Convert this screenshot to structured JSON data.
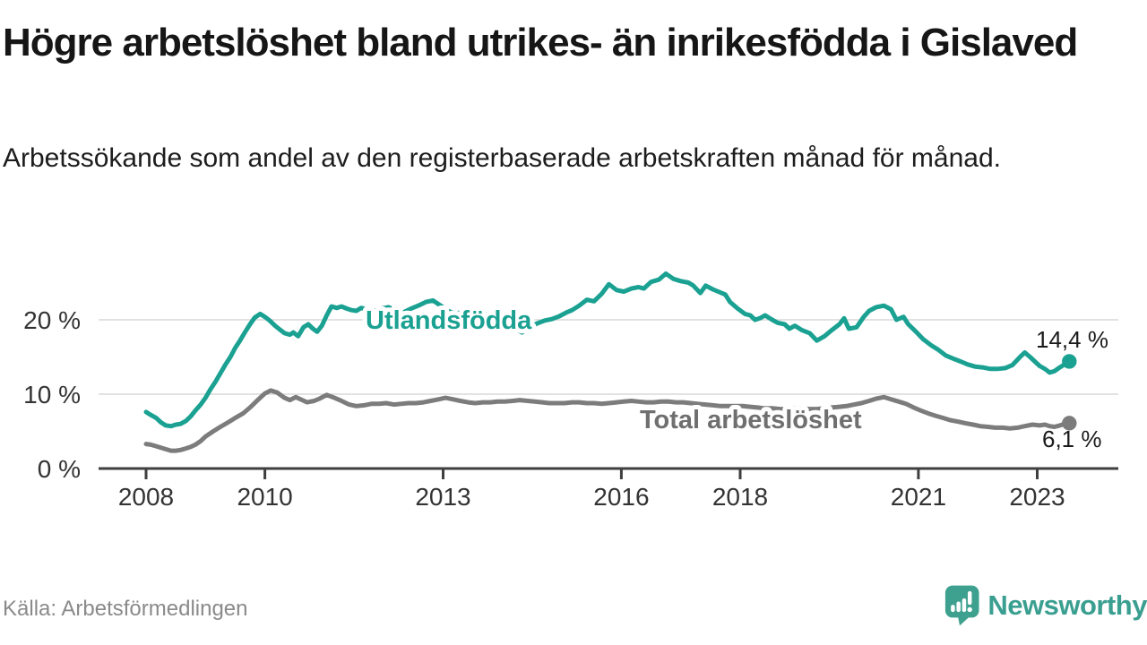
{
  "header": {
    "title": "Högre arbetslöshet bland utrikes- än inrikesfödda i Gislaved",
    "subtitle": "Arbetssökande som andel av den registerbaserade arbetskraften månad för månad."
  },
  "footer": {
    "source": "Källa: Arbetsförmedlingen",
    "brand": "Newsworthy"
  },
  "colors": {
    "teal": "#1aa192",
    "gray": "#7c7c7c",
    "gray_label": "#6f6f6f",
    "grid": "#d9d9d9",
    "axis": "#3f3f3f",
    "value_label": "#1b1b1b",
    "brand_teal": "#3ea08e"
  },
  "chart_data": {
    "type": "line",
    "title": "Högre arbetslöshet bland utrikes- än inrikesfödda i Gislaved",
    "subtitle": "Arbetssökande som andel av den registerbaserade arbetskraften månad för månad.",
    "unit": "%",
    "grid": true,
    "x_axis": {
      "ticks": [
        2008,
        2010,
        2013,
        2016,
        2018,
        2021,
        2023
      ],
      "range": [
        2007.9,
        2024.4
      ]
    },
    "y_axis": {
      "ticks": [
        0,
        10,
        20
      ],
      "tick_labels": [
        "0 %",
        "10 %",
        "20 %"
      ],
      "range": [
        0,
        27
      ]
    },
    "series": [
      {
        "name": "Total arbetslöshet",
        "slug": "total-arbetsloshet",
        "color": "#7c7c7c",
        "label_color": "#6f6f6f",
        "end_label": "6,1 %",
        "end_value": 6.1,
        "points": [
          [
            2008.0,
            3.3
          ],
          [
            2008.08,
            3.2
          ],
          [
            2008.17,
            3.0
          ],
          [
            2008.25,
            2.8
          ],
          [
            2008.33,
            2.6
          ],
          [
            2008.42,
            2.4
          ],
          [
            2008.5,
            2.4
          ],
          [
            2008.58,
            2.5
          ],
          [
            2008.67,
            2.7
          ],
          [
            2008.75,
            2.9
          ],
          [
            2008.83,
            3.2
          ],
          [
            2008.92,
            3.7
          ],
          [
            2009.0,
            4.3
          ],
          [
            2009.13,
            5.0
          ],
          [
            2009.25,
            5.6
          ],
          [
            2009.38,
            6.2
          ],
          [
            2009.5,
            6.8
          ],
          [
            2009.63,
            7.4
          ],
          [
            2009.75,
            8.2
          ],
          [
            2009.88,
            9.2
          ],
          [
            2010.0,
            10.1
          ],
          [
            2010.1,
            10.5
          ],
          [
            2010.21,
            10.2
          ],
          [
            2010.33,
            9.5
          ],
          [
            2010.42,
            9.2
          ],
          [
            2010.52,
            9.6
          ],
          [
            2010.63,
            9.2
          ],
          [
            2010.71,
            8.9
          ],
          [
            2010.83,
            9.1
          ],
          [
            2010.92,
            9.4
          ],
          [
            2011.04,
            9.9
          ],
          [
            2011.17,
            9.5
          ],
          [
            2011.29,
            9.1
          ],
          [
            2011.42,
            8.6
          ],
          [
            2011.54,
            8.4
          ],
          [
            2011.67,
            8.5
          ],
          [
            2011.79,
            8.7
          ],
          [
            2011.92,
            8.7
          ],
          [
            2012.04,
            8.8
          ],
          [
            2012.17,
            8.6
          ],
          [
            2012.29,
            8.7
          ],
          [
            2012.42,
            8.8
          ],
          [
            2012.54,
            8.8
          ],
          [
            2012.67,
            8.9
          ],
          [
            2012.79,
            9.1
          ],
          [
            2012.92,
            9.3
          ],
          [
            2013.04,
            9.5
          ],
          [
            2013.17,
            9.3
          ],
          [
            2013.29,
            9.1
          ],
          [
            2013.42,
            8.9
          ],
          [
            2013.54,
            8.8
          ],
          [
            2013.67,
            8.9
          ],
          [
            2013.79,
            8.9
          ],
          [
            2013.92,
            9.0
          ],
          [
            2014.04,
            9.0
          ],
          [
            2014.17,
            9.1
          ],
          [
            2014.29,
            9.2
          ],
          [
            2014.42,
            9.1
          ],
          [
            2014.54,
            9.0
          ],
          [
            2014.67,
            8.9
          ],
          [
            2014.79,
            8.8
          ],
          [
            2014.92,
            8.8
          ],
          [
            2015.04,
            8.8
          ],
          [
            2015.17,
            8.9
          ],
          [
            2015.29,
            8.9
          ],
          [
            2015.42,
            8.8
          ],
          [
            2015.54,
            8.8
          ],
          [
            2015.67,
            8.7
          ],
          [
            2015.79,
            8.8
          ],
          [
            2015.92,
            8.9
          ],
          [
            2016.04,
            9.0
          ],
          [
            2016.17,
            9.1
          ],
          [
            2016.29,
            9.0
          ],
          [
            2016.42,
            8.9
          ],
          [
            2016.54,
            8.9
          ],
          [
            2016.67,
            9.0
          ],
          [
            2016.79,
            9.0
          ],
          [
            2016.92,
            8.9
          ],
          [
            2017.04,
            8.9
          ],
          [
            2017.17,
            8.8
          ],
          [
            2017.29,
            8.7
          ],
          [
            2017.42,
            8.6
          ],
          [
            2017.54,
            8.5
          ],
          [
            2017.67,
            8.4
          ],
          [
            2017.79,
            8.4
          ],
          [
            2017.92,
            8.4
          ],
          [
            2018.04,
            8.4
          ],
          [
            2018.17,
            8.3
          ],
          [
            2018.29,
            8.2
          ],
          [
            2018.42,
            8.1
          ],
          [
            2018.54,
            8.1
          ],
          [
            2018.67,
            8.0
          ],
          [
            2018.79,
            8.0
          ],
          [
            2018.92,
            8.1
          ],
          [
            2019.04,
            8.1
          ],
          [
            2019.17,
            8.0
          ],
          [
            2019.29,
            8.0
          ],
          [
            2019.42,
            8.1
          ],
          [
            2019.54,
            8.2
          ],
          [
            2019.67,
            8.3
          ],
          [
            2019.79,
            8.4
          ],
          [
            2019.92,
            8.6
          ],
          [
            2020.04,
            8.8
          ],
          [
            2020.17,
            9.1
          ],
          [
            2020.29,
            9.4
          ],
          [
            2020.42,
            9.6
          ],
          [
            2020.54,
            9.3
          ],
          [
            2020.67,
            9.0
          ],
          [
            2020.79,
            8.7
          ],
          [
            2020.92,
            8.2
          ],
          [
            2021.04,
            7.8
          ],
          [
            2021.17,
            7.4
          ],
          [
            2021.29,
            7.1
          ],
          [
            2021.42,
            6.8
          ],
          [
            2021.54,
            6.5
          ],
          [
            2021.67,
            6.3
          ],
          [
            2021.79,
            6.1
          ],
          [
            2021.92,
            5.9
          ],
          [
            2022.04,
            5.7
          ],
          [
            2022.17,
            5.6
          ],
          [
            2022.29,
            5.5
          ],
          [
            2022.42,
            5.5
          ],
          [
            2022.54,
            5.4
          ],
          [
            2022.67,
            5.5
          ],
          [
            2022.79,
            5.7
          ],
          [
            2022.92,
            5.9
          ],
          [
            2023.04,
            5.8
          ],
          [
            2023.13,
            5.9
          ],
          [
            2023.21,
            5.7
          ],
          [
            2023.29,
            5.6
          ],
          [
            2023.38,
            5.8
          ],
          [
            2023.46,
            6.0
          ],
          [
            2023.54,
            6.1
          ]
        ]
      },
      {
        "name": "Utlandsfödda",
        "slug": "utlandsfodda",
        "color": "#1aa192",
        "label_color": "#1aa192",
        "end_label": "14,4 %",
        "end_value": 14.4,
        "points": [
          [
            2008.0,
            7.6
          ],
          [
            2008.08,
            7.2
          ],
          [
            2008.17,
            6.8
          ],
          [
            2008.25,
            6.2
          ],
          [
            2008.33,
            5.8
          ],
          [
            2008.42,
            5.7
          ],
          [
            2008.5,
            5.9
          ],
          [
            2008.58,
            6.0
          ],
          [
            2008.67,
            6.4
          ],
          [
            2008.75,
            7.0
          ],
          [
            2008.83,
            7.8
          ],
          [
            2008.92,
            8.6
          ],
          [
            2009.0,
            9.5
          ],
          [
            2009.08,
            10.6
          ],
          [
            2009.17,
            11.7
          ],
          [
            2009.25,
            12.8
          ],
          [
            2009.33,
            13.9
          ],
          [
            2009.42,
            15.0
          ],
          [
            2009.5,
            16.2
          ],
          [
            2009.58,
            17.2
          ],
          [
            2009.67,
            18.4
          ],
          [
            2009.75,
            19.4
          ],
          [
            2009.83,
            20.3
          ],
          [
            2009.92,
            20.8
          ],
          [
            2010.0,
            20.4
          ],
          [
            2010.08,
            19.9
          ],
          [
            2010.17,
            19.2
          ],
          [
            2010.25,
            18.7
          ],
          [
            2010.33,
            18.2
          ],
          [
            2010.42,
            18.0
          ],
          [
            2010.48,
            18.3
          ],
          [
            2010.56,
            17.8
          ],
          [
            2010.65,
            19.0
          ],
          [
            2010.73,
            19.4
          ],
          [
            2010.81,
            18.8
          ],
          [
            2010.88,
            18.4
          ],
          [
            2010.96,
            19.2
          ],
          [
            2011.04,
            20.6
          ],
          [
            2011.12,
            21.8
          ],
          [
            2011.21,
            21.6
          ],
          [
            2011.29,
            21.8
          ],
          [
            2011.38,
            21.5
          ],
          [
            2011.46,
            21.3
          ],
          [
            2011.54,
            21.2
          ],
          [
            2011.62,
            21.6
          ],
          [
            2011.71,
            21.4
          ],
          [
            2011.79,
            21.1
          ],
          [
            2011.88,
            21.3
          ],
          [
            2011.96,
            21.5
          ],
          [
            2012.08,
            21.7
          ],
          [
            2012.21,
            21.3
          ],
          [
            2012.33,
            21.0
          ],
          [
            2012.46,
            21.5
          ],
          [
            2012.58,
            21.9
          ],
          [
            2012.71,
            22.4
          ],
          [
            2012.83,
            22.6
          ],
          [
            2012.96,
            21.9
          ],
          [
            2013.08,
            21.2
          ],
          [
            2013.21,
            20.8
          ],
          [
            2013.33,
            21.1
          ],
          [
            2013.46,
            20.7
          ],
          [
            2013.58,
            20.4
          ],
          [
            2013.71,
            20.8
          ],
          [
            2013.83,
            20.5
          ],
          [
            2013.96,
            20.1
          ],
          [
            2014.08,
            19.4
          ],
          [
            2014.21,
            18.8
          ],
          [
            2014.33,
            18.3
          ],
          [
            2014.46,
            19.0
          ],
          [
            2014.58,
            19.5
          ],
          [
            2014.71,
            19.9
          ],
          [
            2014.83,
            20.1
          ],
          [
            2014.96,
            20.5
          ],
          [
            2015.08,
            21.0
          ],
          [
            2015.17,
            21.3
          ],
          [
            2015.29,
            21.9
          ],
          [
            2015.42,
            22.7
          ],
          [
            2015.54,
            22.5
          ],
          [
            2015.67,
            23.5
          ],
          [
            2015.79,
            24.8
          ],
          [
            2015.92,
            24.0
          ],
          [
            2016.04,
            23.8
          ],
          [
            2016.17,
            24.2
          ],
          [
            2016.29,
            24.4
          ],
          [
            2016.38,
            24.2
          ],
          [
            2016.5,
            25.1
          ],
          [
            2016.63,
            25.4
          ],
          [
            2016.75,
            26.2
          ],
          [
            2016.88,
            25.5
          ],
          [
            2017.0,
            25.2
          ],
          [
            2017.13,
            25.0
          ],
          [
            2017.21,
            24.6
          ],
          [
            2017.33,
            23.6
          ],
          [
            2017.42,
            24.6
          ],
          [
            2017.54,
            24.1
          ],
          [
            2017.63,
            23.8
          ],
          [
            2017.75,
            23.4
          ],
          [
            2017.83,
            22.4
          ],
          [
            2017.96,
            21.5
          ],
          [
            2018.08,
            20.8
          ],
          [
            2018.17,
            20.6
          ],
          [
            2018.25,
            20.0
          ],
          [
            2018.33,
            20.2
          ],
          [
            2018.42,
            20.6
          ],
          [
            2018.54,
            20.0
          ],
          [
            2018.63,
            19.6
          ],
          [
            2018.75,
            19.4
          ],
          [
            2018.83,
            18.8
          ],
          [
            2018.92,
            19.2
          ],
          [
            2019.04,
            18.6
          ],
          [
            2019.17,
            18.2
          ],
          [
            2019.29,
            17.2
          ],
          [
            2019.42,
            17.8
          ],
          [
            2019.54,
            18.6
          ],
          [
            2019.67,
            19.4
          ],
          [
            2019.75,
            20.2
          ],
          [
            2019.83,
            18.8
          ],
          [
            2019.96,
            19.0
          ],
          [
            2020.08,
            20.4
          ],
          [
            2020.17,
            21.2
          ],
          [
            2020.29,
            21.7
          ],
          [
            2020.42,
            21.9
          ],
          [
            2020.54,
            21.4
          ],
          [
            2020.63,
            20.0
          ],
          [
            2020.75,
            20.4
          ],
          [
            2020.83,
            19.4
          ],
          [
            2020.96,
            18.4
          ],
          [
            2021.08,
            17.4
          ],
          [
            2021.21,
            16.6
          ],
          [
            2021.33,
            16.0
          ],
          [
            2021.46,
            15.2
          ],
          [
            2021.58,
            14.8
          ],
          [
            2021.71,
            14.4
          ],
          [
            2021.83,
            14.0
          ],
          [
            2021.96,
            13.7
          ],
          [
            2022.08,
            13.6
          ],
          [
            2022.21,
            13.4
          ],
          [
            2022.33,
            13.4
          ],
          [
            2022.46,
            13.5
          ],
          [
            2022.58,
            13.9
          ],
          [
            2022.71,
            15.0
          ],
          [
            2022.79,
            15.6
          ],
          [
            2022.88,
            15.0
          ],
          [
            2022.96,
            14.4
          ],
          [
            2023.04,
            13.8
          ],
          [
            2023.13,
            13.4
          ],
          [
            2023.21,
            12.9
          ],
          [
            2023.29,
            13.1
          ],
          [
            2023.38,
            13.6
          ],
          [
            2023.46,
            14.0
          ],
          [
            2023.54,
            14.4
          ]
        ]
      }
    ]
  }
}
